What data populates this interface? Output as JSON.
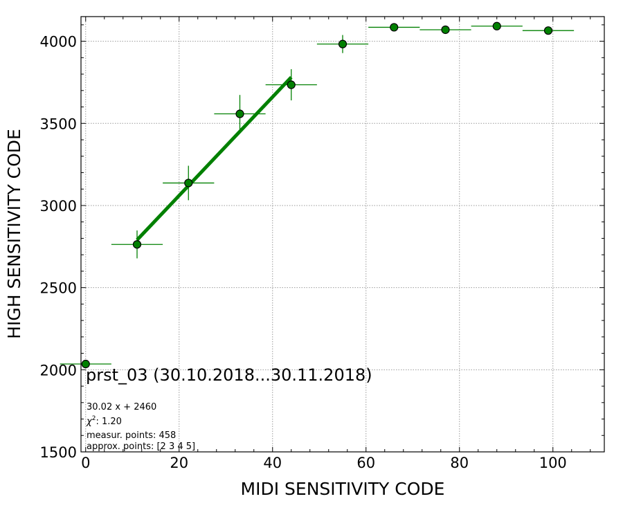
{
  "chart_data": {
    "type": "scatter",
    "xlabel": "MIDI SENSITIVITY CODE",
    "ylabel": "HIGH SENSITIVITY CODE",
    "xlim": [
      -1,
      111
    ],
    "ylim": [
      1500,
      4150
    ],
    "x_ticks": [
      0,
      20,
      40,
      60,
      80,
      100
    ],
    "y_ticks": [
      1500,
      2000,
      2500,
      3000,
      3500,
      4000
    ],
    "grid": true,
    "colors": {
      "marker_fill": "#008000",
      "marker_edge": "#000000",
      "error_bars": "#008000",
      "fit_line": "#008000"
    },
    "series": [
      {
        "x": [
          0,
          11,
          22,
          33,
          44,
          55,
          66,
          77,
          88,
          99
        ],
        "y": [
          2035,
          2763,
          3137,
          3558,
          3735,
          3983,
          4085,
          4070,
          4092,
          4065
        ],
        "xerr": [
          5.5,
          5.5,
          5.5,
          5.5,
          5.5,
          5.5,
          5.5,
          5.5,
          5.5,
          5.5
        ],
        "yerr": [
          0,
          85,
          105,
          115,
          95,
          55,
          0,
          0,
          0,
          0
        ]
      }
    ],
    "fit": {
      "slope": 30.02,
      "intercept": 2460,
      "x_range": [
        11,
        44
      ]
    },
    "annotations": {
      "dataset": "prst_03 (30.10.2018...30.11.2018)",
      "equation": "30.02 x + 2460",
      "chi2_symbol": "χ",
      "chi2_exponent": "2",
      "chi2_value": ": 1.20",
      "measured": "measur. points: 458",
      "approx": "approx. points: [2 3 4 5]"
    }
  }
}
